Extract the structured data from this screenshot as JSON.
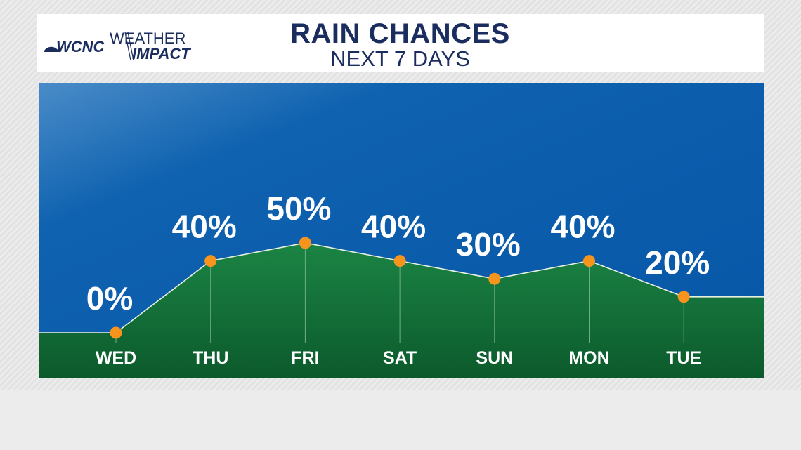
{
  "header": {
    "logo_station": "WCNC",
    "logo_brand_line1": "WEATHER",
    "logo_brand_line2": "IMPACT",
    "title": "RAIN CHANCES",
    "subtitle": "NEXT 7 DAYS"
  },
  "chart_data": {
    "type": "area",
    "title": "RAIN CHANCES",
    "subtitle": "NEXT 7 DAYS",
    "categories": [
      "WED",
      "THU",
      "FRI",
      "SAT",
      "SUN",
      "MON",
      "TUE"
    ],
    "values": [
      0,
      40,
      50,
      40,
      30,
      40,
      20
    ],
    "data_labels": [
      "0%",
      "40%",
      "50%",
      "40%",
      "30%",
      "40%",
      "20%"
    ],
    "unit": "%",
    "ylim": [
      0,
      100
    ],
    "grid": false,
    "colors": {
      "sky": "#0a5fae",
      "fill": "#157a3e",
      "marker": "#f7941d",
      "line": "#e8f0e0"
    }
  }
}
